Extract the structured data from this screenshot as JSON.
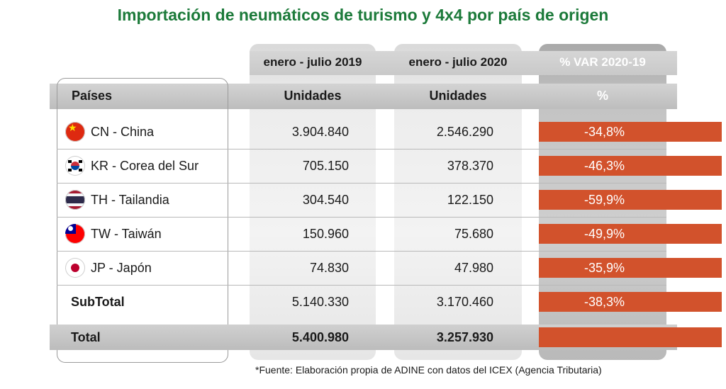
{
  "title": "Importación de neumáticos de turismo y 4x4 por país de origen",
  "headers": {
    "periods": [
      "enero - julio 2019",
      "enero - julio 2020",
      "% VAR 2020-19"
    ],
    "country_col": "Países",
    "units": [
      "Unidades",
      "Unidades",
      "%"
    ]
  },
  "chart_data": {
    "type": "table",
    "title": "Importación de neumáticos de turismo y 4x4 por país de origen",
    "columns": [
      "Países",
      "enero - julio 2019",
      "enero - julio 2020",
      "% VAR 2020-19"
    ],
    "units": [
      "",
      "Unidades",
      "Unidades",
      "%"
    ],
    "rows": [
      {
        "country": "CN - China",
        "flag": "china-flag",
        "v2019": "3.904.840",
        "v2020": "2.546.290",
        "var": "-34,8%"
      },
      {
        "country": "KR - Corea del Sur",
        "flag": "south-korea-flag",
        "v2019": "705.150",
        "v2020": "378.370",
        "var": "-46,3%"
      },
      {
        "country": "TH - Tailandia",
        "flag": "thailand-flag",
        "v2019": "304.540",
        "v2020": "122.150",
        "var": "-59,9%"
      },
      {
        "country": "TW - Taiwán",
        "flag": "taiwan-flag",
        "v2019": "150.960",
        "v2020": "75.680",
        "var": "-49,9%"
      },
      {
        "country": "JP - Japón",
        "flag": "japan-flag",
        "v2019": "74.830",
        "v2020": "47.980",
        "var": "-35,9%"
      }
    ],
    "subtotal": {
      "label": "SubTotal",
      "v2019": "5.140.330",
      "v2020": "3.170.460",
      "var": "-38,3%"
    },
    "total": {
      "label": "Total",
      "v2019": "5.400.980",
      "v2020": "3.257.930",
      "var": ""
    }
  },
  "colors": {
    "title": "#1c7a3a",
    "var_cell": "#d2522c"
  },
  "footnote": "*Fuente: Elaboración propia de ADINE con datos del ICEX (Agencia Tributaria)"
}
